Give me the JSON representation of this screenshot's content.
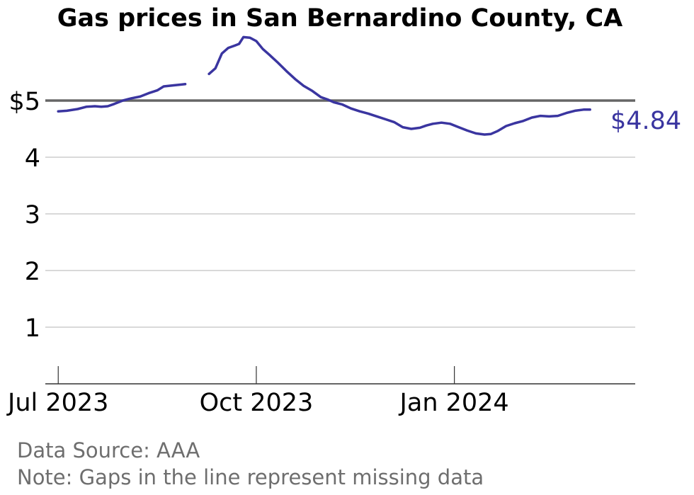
{
  "chart_data": {
    "type": "line",
    "title": "Gas prices in San Bernardino County, CA",
    "ylim": [
      0,
      5.9
    ],
    "yticks": [
      1,
      2,
      3,
      4,
      5
    ],
    "ytick_labels": [
      "1",
      "2",
      "3",
      "4",
      "$5"
    ],
    "xlim": [
      "2023-06-25",
      "2024-03-25"
    ],
    "xticks": [
      "2023-07-01",
      "2023-10-01",
      "2024-01-01"
    ],
    "xtick_labels": [
      "Jul 2023",
      "Oct 2023",
      "Jan 2024"
    ],
    "reference_line": 5,
    "grid": "horizontal",
    "last_value_label": "$4.84",
    "series": [
      {
        "color": "#3a35a0",
        "segments": [
          [
            [
              "2023-07-01",
              4.81
            ],
            [
              "2023-07-05",
              4.82
            ],
            [
              "2023-07-10",
              4.85
            ],
            [
              "2023-07-14",
              4.89
            ],
            [
              "2023-07-18",
              4.9
            ],
            [
              "2023-07-21",
              4.89
            ],
            [
              "2023-07-24",
              4.9
            ],
            [
              "2023-07-27",
              4.94
            ],
            [
              "2023-07-31",
              5.0
            ],
            [
              "2023-08-04",
              5.04
            ],
            [
              "2023-08-08",
              5.07
            ],
            [
              "2023-08-12",
              5.13
            ],
            [
              "2023-08-16",
              5.18
            ],
            [
              "2023-08-19",
              5.25
            ],
            [
              "2023-08-24",
              5.27
            ],
            [
              "2023-08-29",
              5.29
            ]
          ],
          [
            [
              "2023-09-09",
              5.47
            ],
            [
              "2023-09-12",
              5.57
            ],
            [
              "2023-09-15",
              5.83
            ],
            [
              "2023-09-18",
              5.93
            ],
            [
              "2023-09-21",
              5.97
            ],
            [
              "2023-09-23",
              6.0
            ],
            [
              "2023-09-25",
              6.12
            ],
            [
              "2023-09-28",
              6.11
            ],
            [
              "2023-10-01",
              6.05
            ],
            [
              "2023-10-04",
              5.91
            ],
            [
              "2023-10-07",
              5.81
            ],
            [
              "2023-10-11",
              5.67
            ],
            [
              "2023-10-15",
              5.52
            ],
            [
              "2023-10-19",
              5.38
            ],
            [
              "2023-10-23",
              5.26
            ],
            [
              "2023-10-27",
              5.17
            ],
            [
              "2023-10-31",
              5.06
            ],
            [
              "2023-11-03",
              5.02
            ],
            [
              "2023-11-06",
              4.97
            ],
            [
              "2023-11-10",
              4.93
            ],
            [
              "2023-11-14",
              4.86
            ],
            [
              "2023-11-18",
              4.81
            ],
            [
              "2023-11-22",
              4.77
            ],
            [
              "2023-11-26",
              4.72
            ],
            [
              "2023-11-30",
              4.67
            ],
            [
              "2023-12-04",
              4.62
            ],
            [
              "2023-12-08",
              4.53
            ],
            [
              "2023-12-12",
              4.5
            ],
            [
              "2023-12-16",
              4.52
            ],
            [
              "2023-12-19",
              4.56
            ],
            [
              "2023-12-22",
              4.59
            ],
            [
              "2023-12-26",
              4.61
            ],
            [
              "2023-12-30",
              4.59
            ],
            [
              "2024-01-03",
              4.53
            ],
            [
              "2024-01-07",
              4.47
            ],
            [
              "2024-01-11",
              4.42
            ],
            [
              "2024-01-15",
              4.4
            ],
            [
              "2024-01-18",
              4.41
            ],
            [
              "2024-01-21",
              4.46
            ],
            [
              "2024-01-25",
              4.55
            ],
            [
              "2024-01-29",
              4.6
            ],
            [
              "2024-02-02",
              4.64
            ],
            [
              "2024-02-06",
              4.7
            ],
            [
              "2024-02-10",
              4.73
            ],
            [
              "2024-02-14",
              4.72
            ],
            [
              "2024-02-18",
              4.73
            ],
            [
              "2024-02-22",
              4.78
            ],
            [
              "2024-02-26",
              4.82
            ],
            [
              "2024-03-01",
              4.84
            ],
            [
              "2024-03-04",
              4.84
            ]
          ]
        ]
      }
    ]
  },
  "footer": {
    "source": "Data Source: AAA",
    "note": "Note: Gaps in the line represent missing data"
  }
}
